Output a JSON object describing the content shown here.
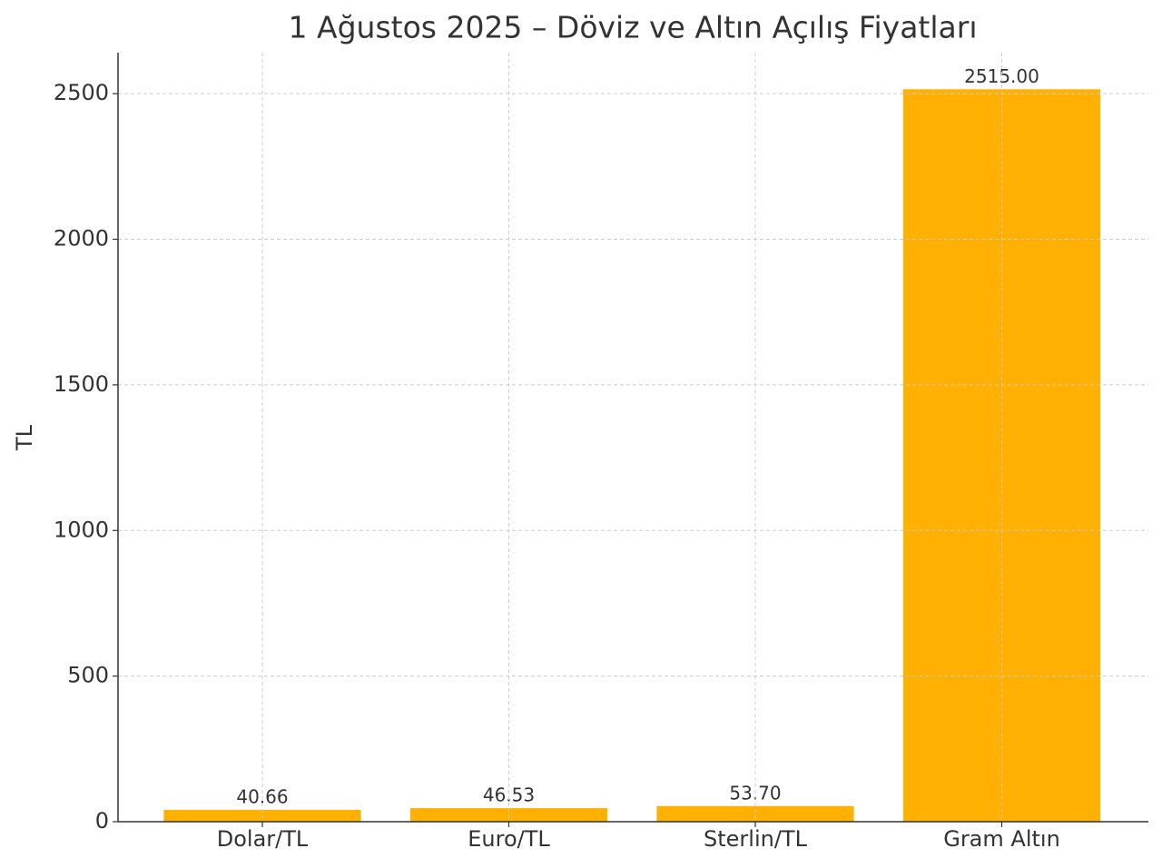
{
  "chart_data": {
    "type": "bar",
    "title": "1 Ağustos 2025 – Döviz ve Altın Açılış Fiyatları",
    "y_label": "TL",
    "categories": [
      "Dolar/TL",
      "Euro/TL",
      "Sterlin/TL",
      "Gram Altın"
    ],
    "values": [
      40.66,
      46.53,
      53.7,
      2515
    ],
    "value_labels": [
      "40.66",
      "46.53",
      "53.70",
      "2515.00"
    ],
    "color": "#ffb000",
    "ylim": [
      0,
      2640.75
    ],
    "yticks": [
      0,
      500,
      1000,
      1500,
      2000,
      2500
    ],
    "grid": true
  }
}
